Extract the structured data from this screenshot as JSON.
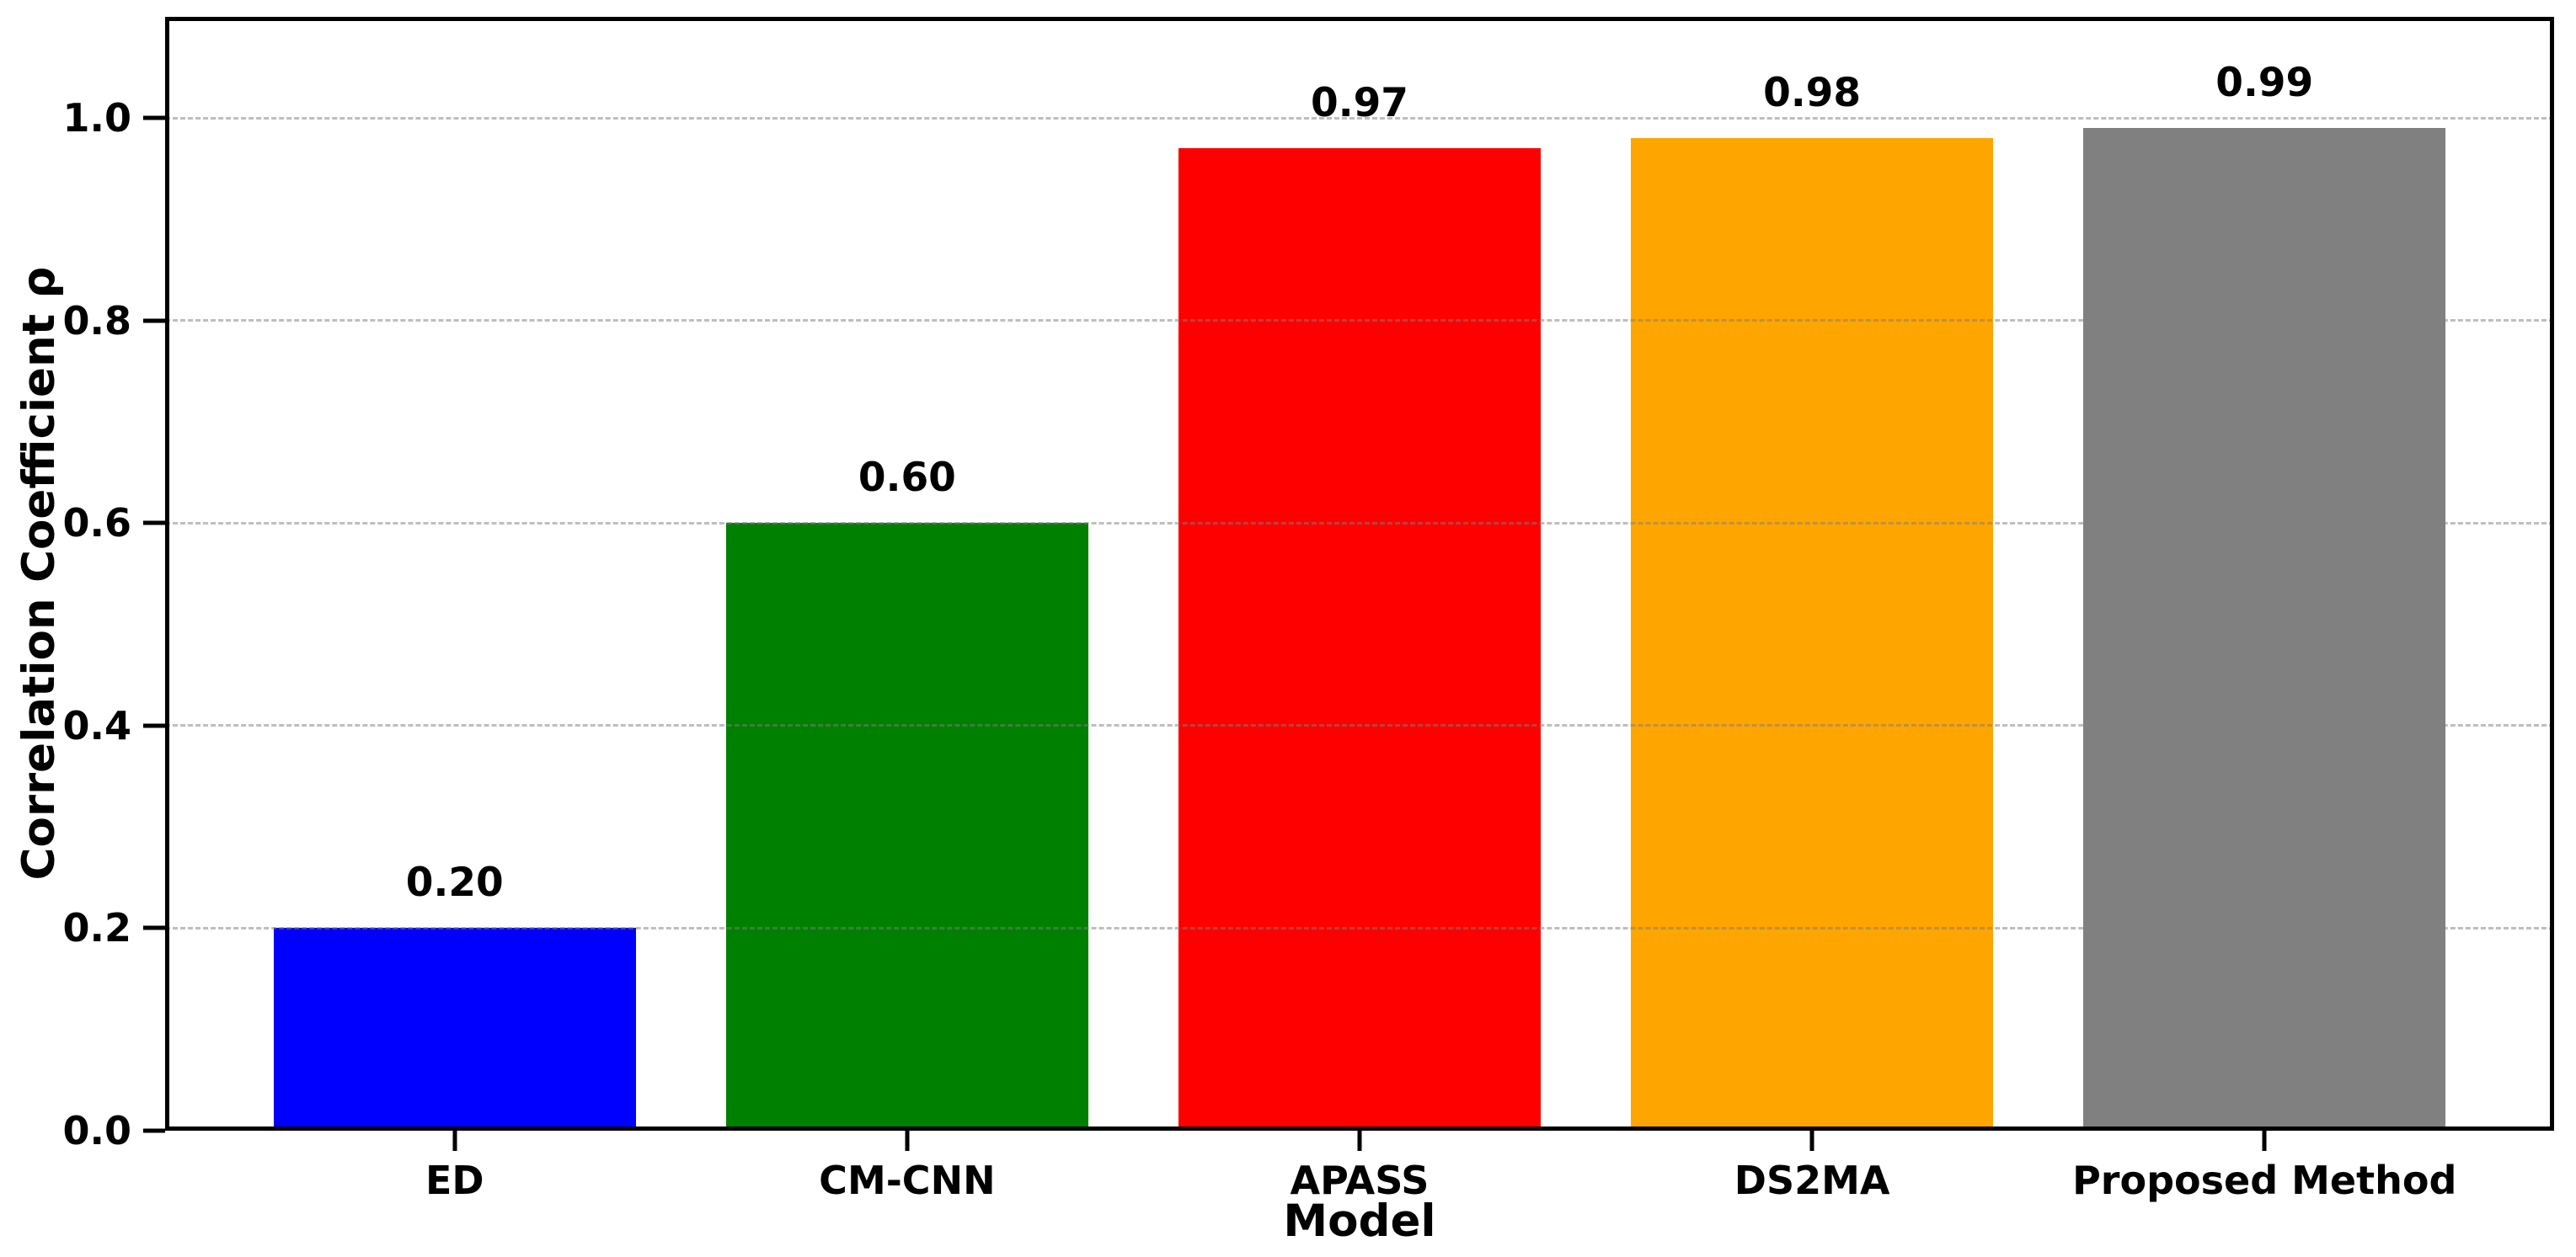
{
  "chart_data": {
    "type": "bar",
    "title": "",
    "xlabel": "Model",
    "ylabel": "Correlation Coefficient ρ",
    "categories": [
      "ED",
      "CM-CNN",
      "APASS",
      "DS2MA",
      "Proposed Method"
    ],
    "values": [
      0.2,
      0.6,
      0.97,
      0.98,
      0.99
    ],
    "value_labels": [
      "0.20",
      "0.60",
      "0.97",
      "0.98",
      "0.99"
    ],
    "bar_colors": [
      "#0000ff",
      "#008000",
      "#ff0000",
      "#ffa500",
      "#808080"
    ],
    "bar_width_units": 0.8,
    "xlim": [
      -0.64,
      4.64
    ],
    "ylim": [
      0,
      1.1
    ],
    "yticks": [
      0.0,
      0.2,
      0.4,
      0.6,
      0.8,
      1.0
    ],
    "ytick_labels": [
      "0.0",
      "0.2",
      "0.4",
      "0.6",
      "0.8",
      "1.0"
    ],
    "grid": "horizontal-dashed",
    "legend_position": "none"
  },
  "style": {
    "background": "#ffffff",
    "axis_color": "#000000",
    "text_color": "#000000",
    "grid_color": "#7d7d7d"
  }
}
